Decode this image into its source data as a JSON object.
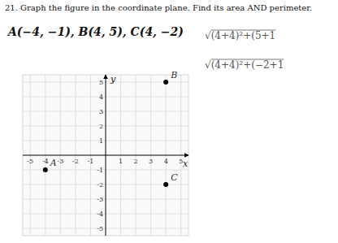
{
  "chart_data": {
    "type": "scatter",
    "title": "21.  Graph the figure in the coordinate plane. Find its area AND perimeter.",
    "subtitle": "A(−4, −1), B(4, 5), C(4, −2)",
    "annotations": [
      "√(4+4)²+(5+1",
      "√(4+4)²+(−2+1"
    ],
    "x_label": "x",
    "y_label": "y",
    "x": [
      -4,
      4,
      4
    ],
    "values": [
      -1,
      5,
      -2
    ],
    "labels": [
      "A",
      "B",
      "C"
    ],
    "color": "#000000",
    "xlim": [
      -5.5,
      5.5
    ],
    "ylim": [
      -5.5,
      5.5
    ],
    "xticks": [
      -5,
      -4,
      -3,
      -2,
      -1,
      1,
      2,
      3,
      4,
      5
    ],
    "yticks": [
      -5,
      -4,
      -3,
      -2,
      -1,
      1,
      2,
      3,
      4,
      5
    ],
    "grid": true
  }
}
